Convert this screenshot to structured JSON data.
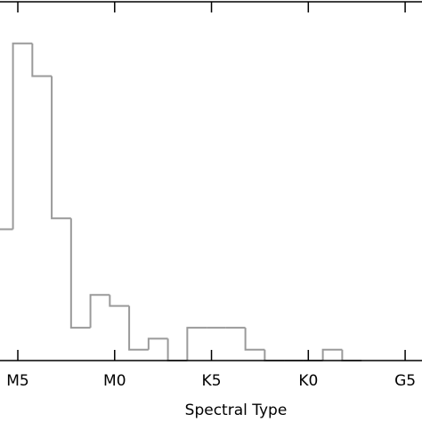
{
  "chart_data": {
    "type": "histogram",
    "x_label": "Spectral Type",
    "bins": [
      -1.25,
      -0.25,
      0.75,
      1.75,
      2.75,
      3.75,
      4.75,
      5.75,
      6.75,
      7.75,
      8.75,
      9.75,
      10.75,
      11.75,
      12.75,
      13.75,
      14.75,
      15.75,
      16.75,
      17.75
    ],
    "counts": [
      12,
      29,
      26,
      13,
      3,
      6,
      5,
      1,
      2,
      0,
      3,
      3,
      3,
      1,
      0,
      0,
      0,
      1,
      0
    ],
    "color": "#9a9a9a",
    "xlim": [
      -0.92,
      20.87
    ],
    "xticks": [
      {
        "value": 0,
        "label": "M5"
      },
      {
        "value": 5,
        "label": "M0"
      },
      {
        "value": 10,
        "label": "K5"
      },
      {
        "value": 15,
        "label": "K0"
      },
      {
        "value": 20,
        "label": "G5"
      }
    ],
    "ylim": [
      0,
      32.8
    ]
  }
}
